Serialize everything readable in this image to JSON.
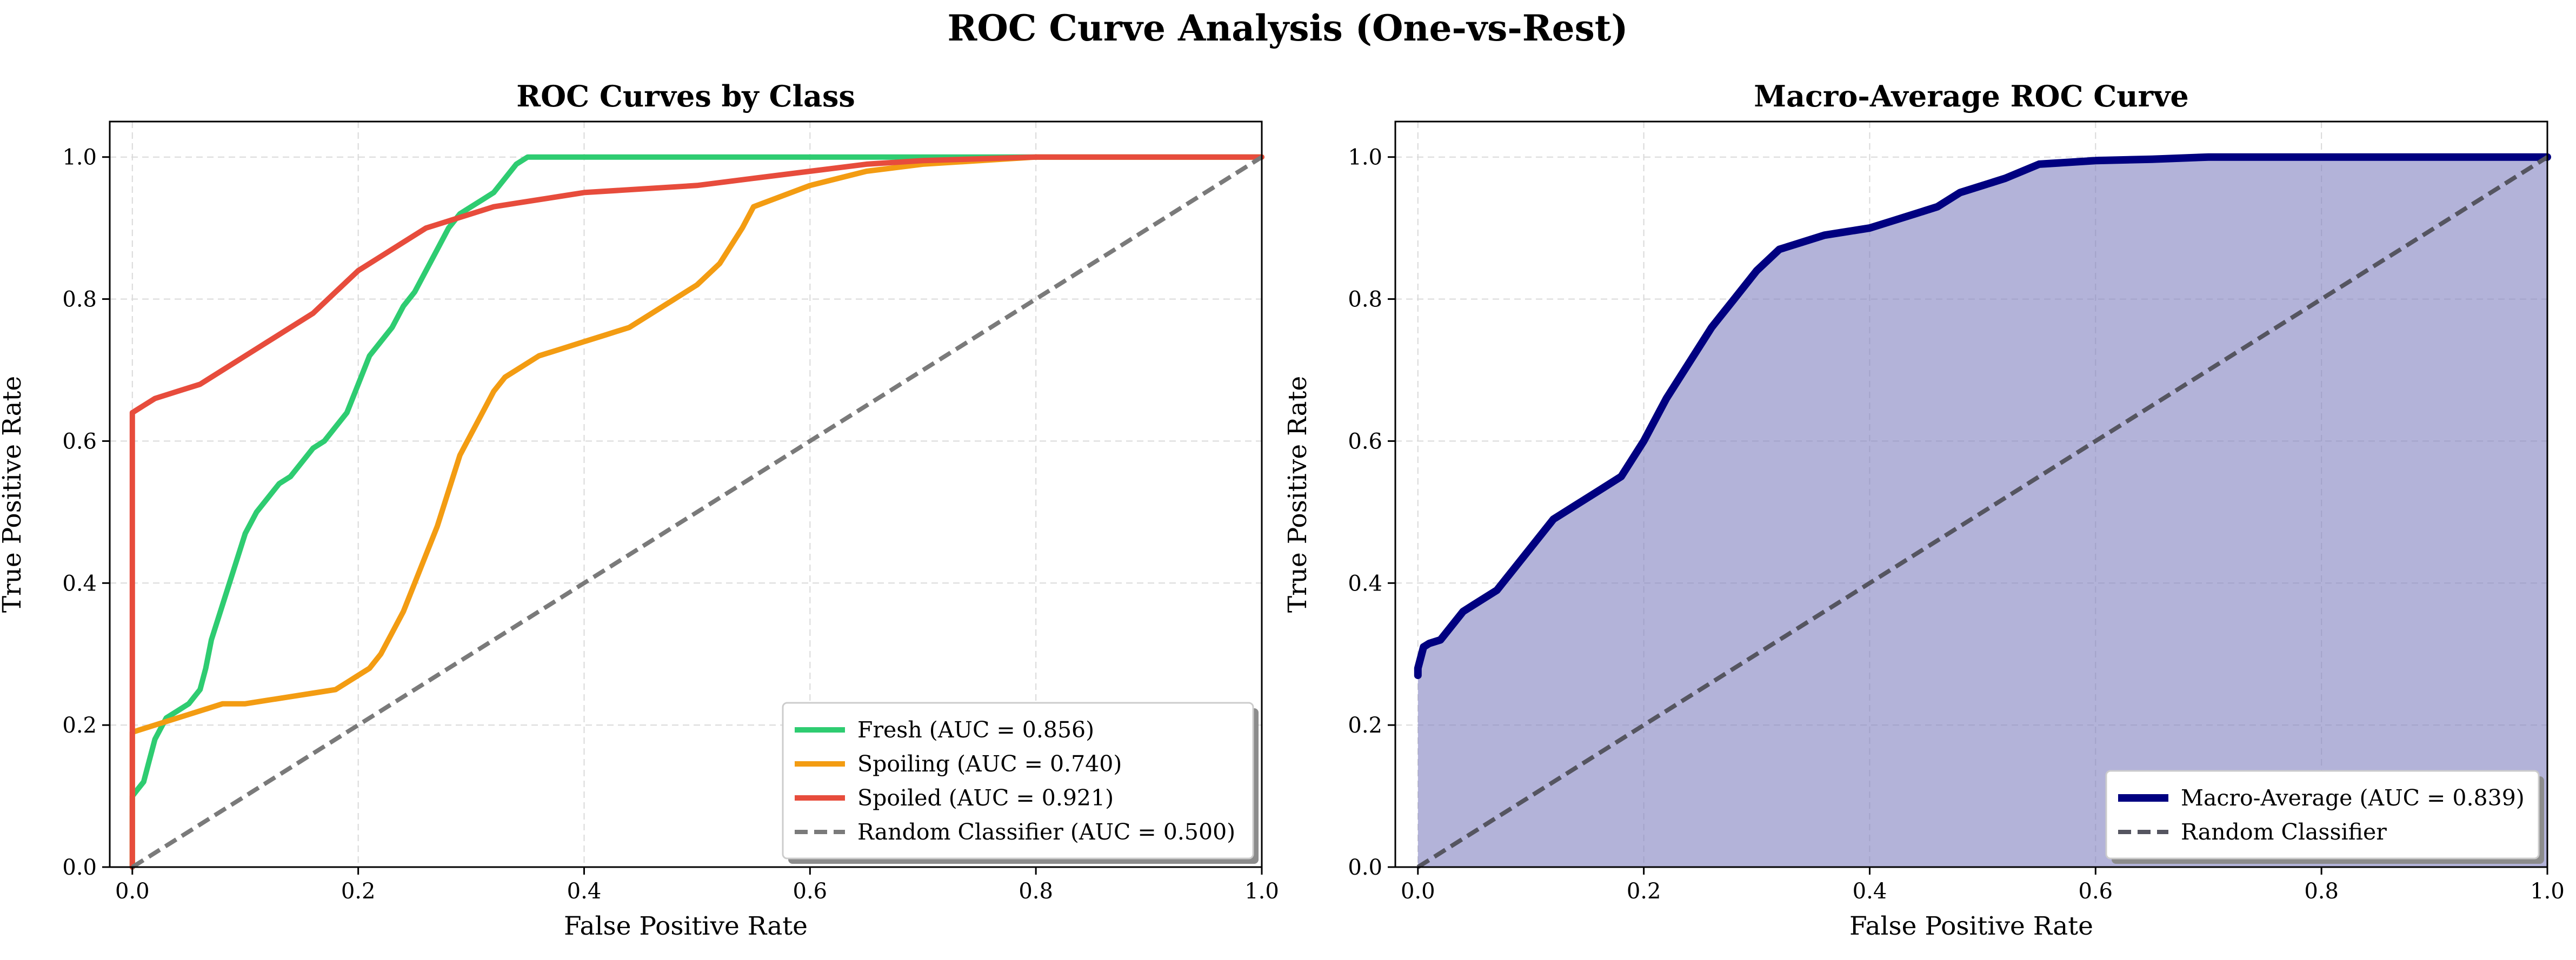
{
  "figure_title": "ROC Curve Analysis (One-vs-Rest)",
  "chart_data": [
    {
      "type": "line",
      "title": "ROC Curves by Class",
      "xlabel": "False Positive Rate",
      "ylabel": "True Positive Rate",
      "xlim": [
        -0.02,
        1.0
      ],
      "ylim": [
        0.0,
        1.05
      ],
      "xticks": [
        "0.0",
        "0.2",
        "0.4",
        "0.6",
        "0.8",
        "1.0"
      ],
      "yticks": [
        "0.0",
        "0.2",
        "0.4",
        "0.6",
        "0.8",
        "1.0"
      ],
      "grid": true,
      "legend_position": "lower-right",
      "series": [
        {
          "name": "Fresh (AUC = 0.856)",
          "color": "#2ecc71",
          "style": "solid",
          "x": [
            0.0,
            0.0,
            0.005,
            0.01,
            0.015,
            0.02,
            0.03,
            0.04,
            0.05,
            0.06,
            0.065,
            0.07,
            0.08,
            0.09,
            0.1,
            0.11,
            0.12,
            0.13,
            0.14,
            0.15,
            0.16,
            0.17,
            0.18,
            0.19,
            0.2,
            0.21,
            0.22,
            0.23,
            0.24,
            0.25,
            0.26,
            0.27,
            0.28,
            0.29,
            0.3,
            0.31,
            0.32,
            0.33,
            0.34,
            0.35,
            0.45,
            0.55,
            0.65,
            0.75,
            0.85,
            1.0
          ],
          "y": [
            0.0,
            0.1,
            0.11,
            0.12,
            0.15,
            0.18,
            0.21,
            0.22,
            0.23,
            0.25,
            0.28,
            0.32,
            0.37,
            0.42,
            0.47,
            0.5,
            0.52,
            0.54,
            0.55,
            0.57,
            0.59,
            0.6,
            0.62,
            0.64,
            0.68,
            0.72,
            0.74,
            0.76,
            0.79,
            0.81,
            0.84,
            0.87,
            0.9,
            0.92,
            0.93,
            0.94,
            0.95,
            0.97,
            0.99,
            1.0,
            1.0,
            1.0,
            1.0,
            1.0,
            1.0,
            1.0
          ]
        },
        {
          "name": "Spoiling (AUC = 0.740)",
          "color": "#f39c12",
          "style": "solid",
          "x": [
            0.0,
            0.0,
            0.02,
            0.04,
            0.06,
            0.08,
            0.1,
            0.12,
            0.14,
            0.16,
            0.18,
            0.19,
            0.2,
            0.21,
            0.22,
            0.23,
            0.24,
            0.25,
            0.26,
            0.27,
            0.28,
            0.29,
            0.3,
            0.31,
            0.32,
            0.33,
            0.34,
            0.36,
            0.38,
            0.4,
            0.42,
            0.44,
            0.46,
            0.48,
            0.5,
            0.52,
            0.54,
            0.55,
            0.6,
            0.65,
            0.7,
            0.8,
            0.9,
            1.0
          ],
          "y": [
            0.0,
            0.19,
            0.2,
            0.21,
            0.22,
            0.23,
            0.23,
            0.235,
            0.24,
            0.245,
            0.25,
            0.26,
            0.27,
            0.28,
            0.3,
            0.33,
            0.36,
            0.4,
            0.44,
            0.48,
            0.53,
            0.58,
            0.61,
            0.64,
            0.67,
            0.69,
            0.7,
            0.72,
            0.73,
            0.74,
            0.75,
            0.76,
            0.78,
            0.8,
            0.82,
            0.85,
            0.9,
            0.93,
            0.96,
            0.98,
            0.99,
            1.0,
            1.0,
            1.0
          ]
        },
        {
          "name": "Spoiled (AUC = 0.921)",
          "color": "#e74c3c",
          "style": "solid",
          "x": [
            0.0,
            0.0,
            0.01,
            0.02,
            0.04,
            0.06,
            0.08,
            0.1,
            0.12,
            0.14,
            0.16,
            0.18,
            0.2,
            0.22,
            0.24,
            0.26,
            0.28,
            0.3,
            0.32,
            0.34,
            0.36,
            0.38,
            0.4,
            0.45,
            0.5,
            0.55,
            0.6,
            0.65,
            0.7,
            0.8,
            0.9,
            1.0
          ],
          "y": [
            0.0,
            0.64,
            0.65,
            0.66,
            0.67,
            0.68,
            0.7,
            0.72,
            0.74,
            0.76,
            0.78,
            0.81,
            0.84,
            0.86,
            0.88,
            0.9,
            0.91,
            0.92,
            0.93,
            0.935,
            0.94,
            0.945,
            0.95,
            0.955,
            0.96,
            0.97,
            0.98,
            0.99,
            0.995,
            1.0,
            1.0,
            1.0
          ]
        },
        {
          "name": "Random Classifier (AUC = 0.500)",
          "color": "#7a7a7a",
          "style": "dashed",
          "x": [
            0.0,
            1.0
          ],
          "y": [
            0.0,
            1.0
          ]
        }
      ]
    },
    {
      "type": "area",
      "title": "Macro-Average ROC Curve",
      "xlabel": "False Positive Rate",
      "ylabel": "True Positive Rate",
      "xlim": [
        -0.02,
        1.0
      ],
      "ylim": [
        0.0,
        1.05
      ],
      "xticks": [
        "0.0",
        "0.2",
        "0.4",
        "0.6",
        "0.8",
        "1.0"
      ],
      "yticks": [
        "0.0",
        "0.2",
        "0.4",
        "0.6",
        "0.8",
        "1.0"
      ],
      "grid": true,
      "legend_position": "lower-right",
      "fill_color": "#8080c0",
      "series": [
        {
          "name": "Macro-Average (AUC = 0.839)",
          "color": "#000080",
          "style": "solid",
          "x": [
            0.0,
            0.0,
            0.005,
            0.01,
            0.02,
            0.03,
            0.04,
            0.05,
            0.06,
            0.07,
            0.08,
            0.09,
            0.1,
            0.12,
            0.14,
            0.16,
            0.18,
            0.2,
            0.22,
            0.24,
            0.26,
            0.28,
            0.3,
            0.32,
            0.34,
            0.36,
            0.38,
            0.4,
            0.42,
            0.44,
            0.46,
            0.48,
            0.5,
            0.52,
            0.55,
            0.6,
            0.65,
            0.7,
            0.8,
            0.9,
            1.0
          ],
          "y": [
            0.27,
            0.28,
            0.31,
            0.315,
            0.32,
            0.34,
            0.36,
            0.37,
            0.38,
            0.39,
            0.41,
            0.43,
            0.45,
            0.49,
            0.51,
            0.53,
            0.55,
            0.6,
            0.66,
            0.71,
            0.76,
            0.8,
            0.84,
            0.87,
            0.88,
            0.89,
            0.895,
            0.9,
            0.91,
            0.92,
            0.93,
            0.95,
            0.96,
            0.97,
            0.99,
            0.995,
            0.997,
            1.0,
            1.0,
            1.0,
            1.0
          ]
        },
        {
          "name": "Random Classifier",
          "color": "#555560",
          "style": "dashed",
          "x": [
            0.0,
            1.0
          ],
          "y": [
            0.0,
            1.0
          ]
        }
      ]
    }
  ]
}
